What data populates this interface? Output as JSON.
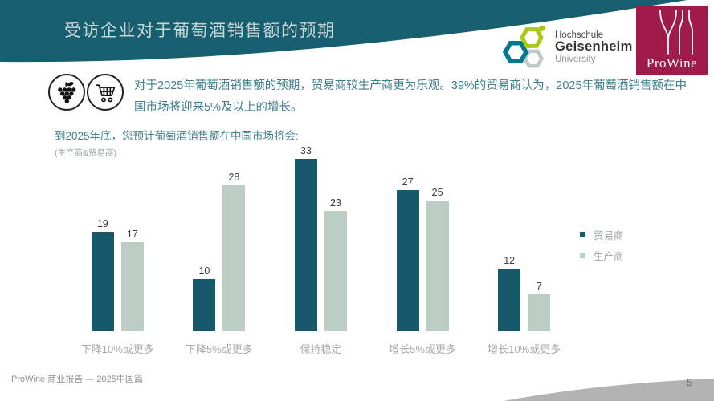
{
  "slide": {
    "title": "受访企业对于葡萄酒销售额的预期",
    "footer": "ProWine 商业报告 — 2025中国篇",
    "page_number": "5"
  },
  "logos": {
    "geisenheim": {
      "line1": "Hochschule",
      "line2": "Geisenheim",
      "line3": "University"
    },
    "prowine": {
      "label": "ProWine"
    }
  },
  "intro": {
    "text": "对于2025年葡萄酒销售额的预期，贸易商较生产商更为乐观。39%的贸易商认为，2025年葡萄酒销售额在中国市场将迎来5%及以上的增长。"
  },
  "chart_data": {
    "type": "bar",
    "title": "到2025年底，您预计葡萄酒销售额在中国市场将会:",
    "subtitle": "(生产商&贸易商)",
    "categories": [
      "下降10%或更多",
      "下降5%或更多",
      "保持稳定",
      "增长5%或更多",
      "增长10%或更多"
    ],
    "series": [
      {
        "name": "贸易商",
        "values": [
          19,
          10,
          33,
          27,
          12
        ],
        "color": "#15596b"
      },
      {
        "name": "生产商",
        "values": [
          17,
          28,
          23,
          25,
          7
        ],
        "color": "#bccdc5"
      }
    ],
    "ylim": [
      0,
      33
    ],
    "grid": false,
    "data_labels": true,
    "legend_position": "right"
  },
  "colors": {
    "banner_teal": "#175f6e",
    "trader_bar": "#15596b",
    "producer_bar": "#bccdc5",
    "prowine_maroon": "#a01a4b",
    "geisenheim_teal": "#00778c",
    "geisenheim_green": "#a9c918",
    "accent_text_teal": "#3c7f8e"
  }
}
